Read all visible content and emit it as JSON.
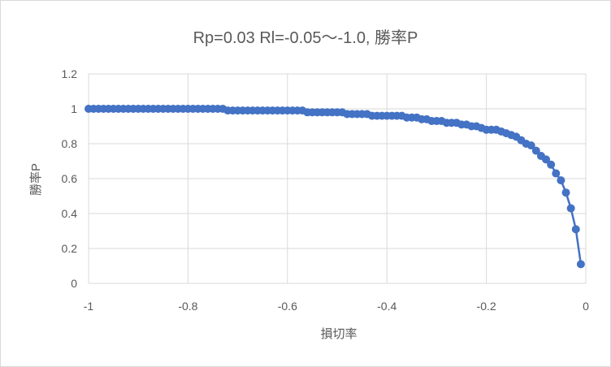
{
  "chart_data": {
    "type": "line",
    "title": "Rp=0.03 Rl=-0.05～-1.0, 勝率P",
    "xlabel": "損切率",
    "ylabel": "勝率P",
    "xlim": [
      -1,
      0
    ],
    "ylim": [
      0,
      1.2
    ],
    "x_ticks": [
      "-1",
      "-0.8",
      "-0.6",
      "-0.4",
      "-0.2",
      "0"
    ],
    "y_ticks": [
      "0",
      "0.2",
      "0.4",
      "0.6",
      "0.8",
      "1",
      "1.2"
    ],
    "grid": true,
    "legend": "none",
    "colors": {
      "series": "#4472c4",
      "grid": "#d9d9d9",
      "text": "#595959"
    },
    "series": [
      {
        "x": [
          -1.0,
          -0.99,
          -0.98,
          -0.97,
          -0.96,
          -0.95,
          -0.94,
          -0.93,
          -0.92,
          -0.91,
          -0.9,
          -0.89,
          -0.88,
          -0.87,
          -0.86,
          -0.85,
          -0.84,
          -0.83,
          -0.82,
          -0.81,
          -0.8,
          -0.79,
          -0.78,
          -0.77,
          -0.76,
          -0.75,
          -0.74,
          -0.73,
          -0.72,
          -0.71,
          -0.7,
          -0.69,
          -0.68,
          -0.67,
          -0.66,
          -0.65,
          -0.64,
          -0.63,
          -0.62,
          -0.61,
          -0.6,
          -0.59,
          -0.58,
          -0.57,
          -0.56,
          -0.55,
          -0.54,
          -0.53,
          -0.52,
          -0.51,
          -0.5,
          -0.49,
          -0.48,
          -0.47,
          -0.46,
          -0.45,
          -0.44,
          -0.43,
          -0.42,
          -0.41,
          -0.4,
          -0.39,
          -0.38,
          -0.37,
          -0.36,
          -0.35,
          -0.34,
          -0.33,
          -0.32,
          -0.31,
          -0.3,
          -0.29,
          -0.28,
          -0.27,
          -0.26,
          -0.25,
          -0.24,
          -0.23,
          -0.22,
          -0.21,
          -0.2,
          -0.19,
          -0.18,
          -0.17,
          -0.16,
          -0.15,
          -0.14,
          -0.13,
          -0.12,
          -0.11,
          -0.1,
          -0.09,
          -0.08,
          -0.07,
          -0.06,
          -0.05,
          -0.04,
          -0.03,
          -0.02,
          -0.01
        ],
        "y": [
          1.0,
          1.0,
          1.0,
          1.0,
          1.0,
          1.0,
          1.0,
          1.0,
          1.0,
          1.0,
          1.0,
          1.0,
          1.0,
          1.0,
          1.0,
          1.0,
          1.0,
          1.0,
          1.0,
          1.0,
          1.0,
          1.0,
          1.0,
          1.0,
          1.0,
          1.0,
          1.0,
          1.0,
          0.99,
          0.99,
          0.99,
          0.99,
          0.99,
          0.99,
          0.99,
          0.99,
          0.99,
          0.99,
          0.99,
          0.99,
          0.99,
          0.99,
          0.99,
          0.99,
          0.98,
          0.98,
          0.98,
          0.98,
          0.98,
          0.98,
          0.98,
          0.98,
          0.97,
          0.97,
          0.97,
          0.97,
          0.97,
          0.96,
          0.96,
          0.96,
          0.96,
          0.96,
          0.96,
          0.96,
          0.95,
          0.95,
          0.95,
          0.94,
          0.94,
          0.93,
          0.93,
          0.93,
          0.92,
          0.92,
          0.92,
          0.91,
          0.91,
          0.9,
          0.9,
          0.89,
          0.88,
          0.88,
          0.88,
          0.87,
          0.86,
          0.85,
          0.84,
          0.82,
          0.8,
          0.79,
          0.76,
          0.73,
          0.71,
          0.68,
          0.63,
          0.59,
          0.52,
          0.43,
          0.31,
          0.11
        ]
      }
    ]
  }
}
